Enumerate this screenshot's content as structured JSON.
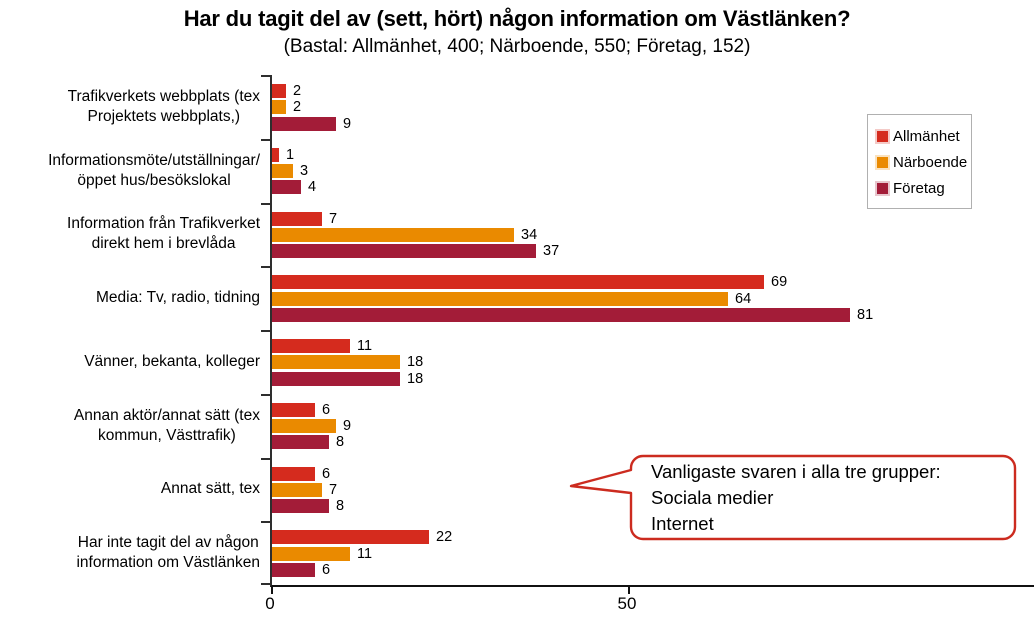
{
  "chart_data": {
    "type": "bar",
    "orientation": "horizontal",
    "title": "Har du tagit del av (sett, hört) någon information om Västlänken?",
    "subtitle": "(Bastal: Allmänhet, 400; Närboende, 550; Företag, 152)",
    "categories": [
      "Trafikverkets webbplats (tex\nProjektets webbplats,)",
      "Informationsmöte/utställningar/\nöppet hus/besökslokal",
      "Information från Trafikverket\ndirekt hem i brevlåda",
      "Media: Tv, radio, tidning",
      "Vänner, bekanta, kolleger",
      "Annan aktör/annat sätt (tex\nkommun, Västtrafik)",
      "Annat sätt, tex",
      "Har inte tagit del av någon\ninformation om Västlänken"
    ],
    "series": [
      {
        "name": "Allmänhet",
        "color": "#D52B1E",
        "values": [
          2,
          1,
          7,
          69,
          11,
          6,
          6,
          22
        ]
      },
      {
        "name": "Närboende",
        "color": "#EA8A00",
        "values": [
          2,
          3,
          34,
          64,
          18,
          9,
          7,
          11
        ]
      },
      {
        "name": "Företag",
        "color": "#A31C38",
        "values": [
          9,
          4,
          37,
          81,
          18,
          8,
          8,
          6
        ]
      }
    ],
    "xlim": [
      0,
      107
    ],
    "xticks": [
      0,
      50
    ],
    "value_labels": true,
    "grid": false,
    "legend_position": "top-right",
    "axis_color": "#111111"
  },
  "callout": {
    "lines": [
      "Vanligaste svaren i alla tre grupper:",
      "Sociala medier",
      "Internet"
    ],
    "border_color": "#CC2B1F",
    "fill_color": "#FFFFFF"
  }
}
